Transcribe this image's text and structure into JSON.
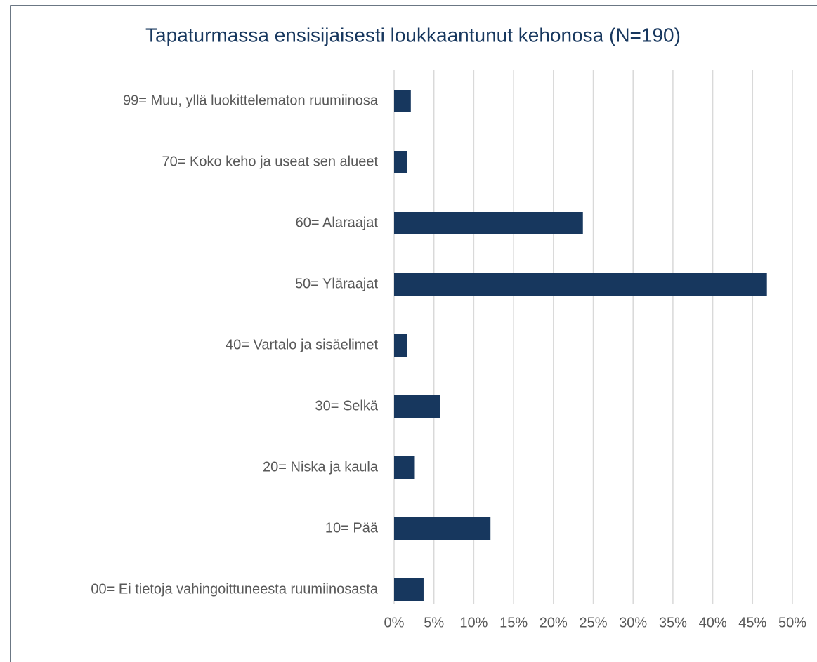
{
  "chart_data": {
    "type": "bar",
    "orientation": "horizontal",
    "title": "Tapaturmassa ensisijaisesti loukkaantunut kehonosa (N=190)",
    "categories": [
      "99= Muu, yllä luokittelematon ruumiinosa",
      "70= Koko keho ja useat sen alueet",
      "60= Alaraajat",
      "50= Yläraajat",
      "40= Vartalo ja sisäelimet",
      "30= Selkä",
      "20= Niska ja kaula",
      "10= Pää",
      "00= Ei tietoja vahingoittuneesta ruumiinosasta"
    ],
    "values": [
      2.1,
      1.6,
      23.7,
      46.8,
      1.6,
      5.8,
      2.6,
      12.1,
      3.7
    ],
    "color": "#17375e",
    "xlim": [
      0,
      50
    ],
    "xticks": [
      {
        "value": 0,
        "label": "0%"
      },
      {
        "value": 5,
        "label": "5%"
      },
      {
        "value": 10,
        "label": "10%"
      },
      {
        "value": 15,
        "label": "15%"
      },
      {
        "value": 20,
        "label": "20%"
      },
      {
        "value": 25,
        "label": "25%"
      },
      {
        "value": 30,
        "label": "30%"
      },
      {
        "value": 35,
        "label": "35%"
      },
      {
        "value": 40,
        "label": "40%"
      },
      {
        "value": 45,
        "label": "45%"
      },
      {
        "value": 50,
        "label": "50%"
      }
    ],
    "grid": true
  }
}
